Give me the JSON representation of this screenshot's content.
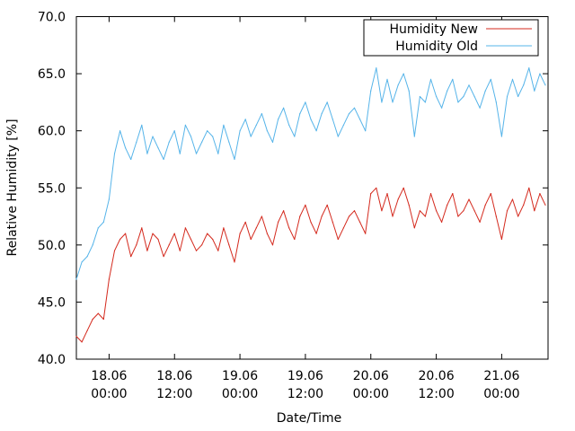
{
  "chart_data": {
    "type": "line",
    "title": "",
    "xlabel": "Date/Time",
    "ylabel": "Relative Humidity [%]",
    "ylim": [
      40.0,
      70.0
    ],
    "x_unit": "hours after 17.06 18:00",
    "xlim": [
      0,
      86.5
    ],
    "grid": false,
    "legend_position": "top-right",
    "x_tick_labels": [
      {
        "x": 6,
        "line1": "18.06",
        "line2": "00:00"
      },
      {
        "x": 18,
        "line1": "18.06",
        "line2": "12:00"
      },
      {
        "x": 30,
        "line1": "19.06",
        "line2": "00:00"
      },
      {
        "x": 42,
        "line1": "19.06",
        "line2": "12:00"
      },
      {
        "x": 54,
        "line1": "20.06",
        "line2": "00:00"
      },
      {
        "x": 66,
        "line1": "20.06",
        "line2": "12:00"
      },
      {
        "x": 78,
        "line1": "21.06",
        "line2": "00:00"
      }
    ],
    "y_ticks": [
      40.0,
      45.0,
      50.0,
      55.0,
      60.0,
      65.0,
      70.0
    ],
    "y_tick_labels": [
      "40.0",
      "45.0",
      "50.0",
      "55.0",
      "60.0",
      "65.0",
      "70.0"
    ],
    "series": [
      {
        "name": "Humidity New",
        "color": "#d42a1e",
        "x": [
          0,
          1,
          2,
          3,
          4,
          5,
          6,
          7,
          8,
          9,
          10,
          11,
          12,
          13,
          14,
          15,
          16,
          17,
          18,
          19,
          20,
          21,
          22,
          23,
          24,
          25,
          26,
          27,
          28,
          29,
          30,
          31,
          32,
          33,
          34,
          35,
          36,
          37,
          38,
          39,
          40,
          41,
          42,
          43,
          44,
          45,
          46,
          47,
          48,
          49,
          50,
          51,
          52,
          53,
          54,
          55,
          56,
          57,
          58,
          59,
          60,
          61,
          62,
          63,
          64,
          65,
          66,
          67,
          68,
          69,
          70,
          71,
          72,
          73,
          74,
          75,
          76,
          77,
          78,
          79,
          80,
          81,
          82,
          83,
          84,
          85,
          86
        ],
        "y": [
          42.0,
          41.5,
          42.5,
          43.5,
          44.0,
          43.5,
          47.0,
          49.5,
          50.5,
          51.0,
          49.0,
          50.0,
          51.5,
          49.5,
          51.0,
          50.5,
          49.0,
          50.0,
          51.0,
          49.5,
          51.5,
          50.5,
          49.5,
          50.0,
          51.0,
          50.5,
          49.5,
          51.5,
          50.0,
          48.5,
          51.0,
          52.0,
          50.5,
          51.5,
          52.5,
          51.0,
          50.0,
          52.0,
          53.0,
          51.5,
          50.5,
          52.5,
          53.5,
          52.0,
          51.0,
          52.5,
          53.5,
          52.0,
          50.5,
          51.5,
          52.5,
          53.0,
          52.0,
          51.0,
          54.5,
          55.0,
          53.0,
          54.5,
          52.5,
          54.0,
          55.0,
          53.5,
          51.5,
          53.0,
          52.5,
          54.5,
          53.0,
          52.0,
          53.5,
          54.5,
          52.5,
          53.0,
          54.0,
          53.0,
          52.0,
          53.5,
          54.5,
          52.5,
          50.5,
          53.0,
          54.0,
          52.5,
          53.5,
          55.0,
          53.0,
          54.5,
          53.5
        ]
      },
      {
        "name": "Humidity Old",
        "color": "#56b4e9",
        "x": [
          0,
          1,
          2,
          3,
          4,
          5,
          6,
          7,
          8,
          9,
          10,
          11,
          12,
          13,
          14,
          15,
          16,
          17,
          18,
          19,
          20,
          21,
          22,
          23,
          24,
          25,
          26,
          27,
          28,
          29,
          30,
          31,
          32,
          33,
          34,
          35,
          36,
          37,
          38,
          39,
          40,
          41,
          42,
          43,
          44,
          45,
          46,
          47,
          48,
          49,
          50,
          51,
          52,
          53,
          54,
          55,
          56,
          57,
          58,
          59,
          60,
          61,
          62,
          63,
          64,
          65,
          66,
          67,
          68,
          69,
          70,
          71,
          72,
          73,
          74,
          75,
          76,
          77,
          78,
          79,
          80,
          81,
          82,
          83,
          84,
          85,
          86
        ],
        "y": [
          47.0,
          48.5,
          49.0,
          50.0,
          51.5,
          52.0,
          54.0,
          58.0,
          60.0,
          58.5,
          57.5,
          59.0,
          60.5,
          58.0,
          59.5,
          58.5,
          57.5,
          59.0,
          60.0,
          58.0,
          60.5,
          59.5,
          58.0,
          59.0,
          60.0,
          59.5,
          58.0,
          60.5,
          59.0,
          57.5,
          60.0,
          61.0,
          59.5,
          60.5,
          61.5,
          60.0,
          59.0,
          61.0,
          62.0,
          60.5,
          59.5,
          61.5,
          62.5,
          61.0,
          60.0,
          61.5,
          62.5,
          61.0,
          59.5,
          60.5,
          61.5,
          62.0,
          61.0,
          60.0,
          63.5,
          65.5,
          62.5,
          64.5,
          62.5,
          64.0,
          65.0,
          63.5,
          59.5,
          63.0,
          62.5,
          64.5,
          63.0,
          62.0,
          63.5,
          64.5,
          62.5,
          63.0,
          64.0,
          63.0,
          62.0,
          63.5,
          64.5,
          62.5,
          59.5,
          63.0,
          64.5,
          63.0,
          64.0,
          65.5,
          63.5,
          65.0,
          64.0
        ]
      }
    ]
  }
}
